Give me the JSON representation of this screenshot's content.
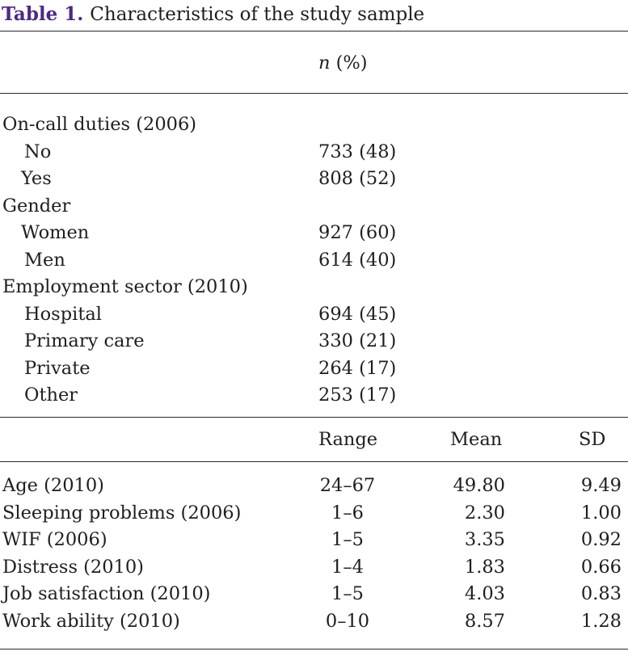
{
  "table": {
    "label": "Table 1.",
    "title": "Characteristics of the study sample",
    "header1": {
      "n_symbol": "n",
      "n_suffix": " (%)"
    },
    "categorical": [
      {
        "group": "On-call duties (2006)",
        "rows": [
          {
            "label": "No",
            "value": "733 (48)"
          },
          {
            "label": "Yes",
            "value": "808 (52)"
          }
        ]
      },
      {
        "group": "Gender",
        "rows": [
          {
            "label": "Women",
            "value": "927 (60)"
          },
          {
            "label": "Men",
            "value": "614 (40)"
          }
        ]
      },
      {
        "group": "Employment sector (2010)",
        "rows": [
          {
            "label": "Hospital",
            "value": "694 (45)"
          },
          {
            "label": "Primary care",
            "value": "330 (21)"
          },
          {
            "label": "Private",
            "value": "264 (17)"
          },
          {
            "label": "Other",
            "value": "253 (17)"
          }
        ]
      }
    ],
    "header2": {
      "range": "Range",
      "mean": "Mean",
      "sd": "SD"
    },
    "continuous": [
      {
        "label": "Age (2010)",
        "range": "24–67",
        "mean": "49.80",
        "sd": "9.49"
      },
      {
        "label": "Sleeping problems (2006)",
        "range": "1–6",
        "mean": "2.30",
        "sd": "1.00"
      },
      {
        "label": "WIF (2006)",
        "range": "1–5",
        "mean": "3.35",
        "sd": "0.92"
      },
      {
        "label": "Distress (2010)",
        "range": "1–4",
        "mean": "1.83",
        "sd": "0.66"
      },
      {
        "label": "Job satisfaction (2010)",
        "range": "1–5",
        "mean": "4.03",
        "sd": "0.83"
      },
      {
        "label": "Work ability (2010)",
        "range": "0–10",
        "mean": "8.57",
        "sd": "1.28"
      }
    ]
  }
}
